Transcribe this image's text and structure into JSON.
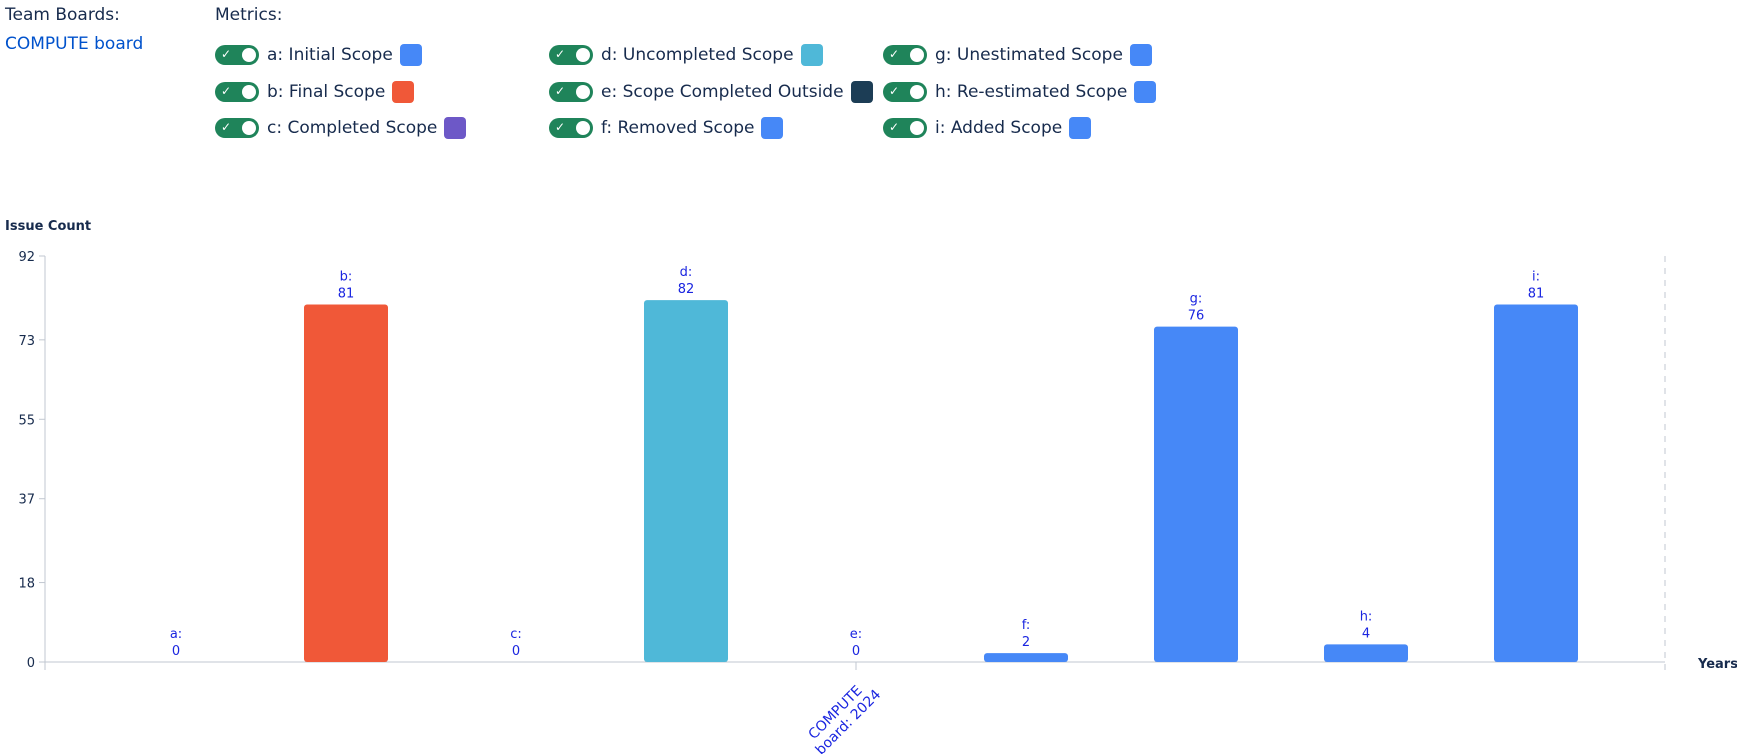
{
  "team_boards": {
    "title": "Team Boards:",
    "board_link": "COMPUTE board"
  },
  "metrics": {
    "title": "Metrics:",
    "items": [
      {
        "label": "a: Initial Scope",
        "color": "#4688f7",
        "enabled": true
      },
      {
        "label": "b: Final Scope",
        "color": "#f05838",
        "enabled": true
      },
      {
        "label": "c: Completed Scope",
        "color": "#6d58c7",
        "enabled": true
      },
      {
        "label": "d: Uncompleted Scope",
        "color": "#4fb8d8",
        "enabled": true
      },
      {
        "label": "e: Scope Completed Outside",
        "color": "#1c3d55",
        "enabled": true
      },
      {
        "label": "f: Removed Scope",
        "color": "#4688f7",
        "enabled": true
      },
      {
        "label": "g: Unestimated Scope",
        "color": "#4688f7",
        "enabled": true
      },
      {
        "label": "h: Re-estimated Scope",
        "color": "#4688f7",
        "enabled": true
      },
      {
        "label": "i: Added Scope",
        "color": "#4688f7",
        "enabled": true
      }
    ]
  },
  "chart_data": {
    "type": "bar",
    "ylabel": "Issue Count",
    "xlabel": "Years",
    "yticks": [
      0,
      18,
      37,
      55,
      73,
      92
    ],
    "ylim": [
      0,
      92
    ],
    "category": "COMPUTE board: 2024",
    "bars": [
      {
        "key": "a:",
        "value": 0,
        "color": "#4688f7"
      },
      {
        "key": "b:",
        "value": 81,
        "color": "#f05838"
      },
      {
        "key": "c:",
        "value": 0,
        "color": "#6d58c7"
      },
      {
        "key": "d:",
        "value": 82,
        "color": "#4fb8d8"
      },
      {
        "key": "e:",
        "value": 0,
        "color": "#1c3d55"
      },
      {
        "key": "f:",
        "value": 2,
        "color": "#4688f7"
      },
      {
        "key": "g:",
        "value": 76,
        "color": "#4688f7"
      },
      {
        "key": "h:",
        "value": 4,
        "color": "#4688f7"
      },
      {
        "key": "i:",
        "value": 81,
        "color": "#4688f7"
      }
    ]
  }
}
